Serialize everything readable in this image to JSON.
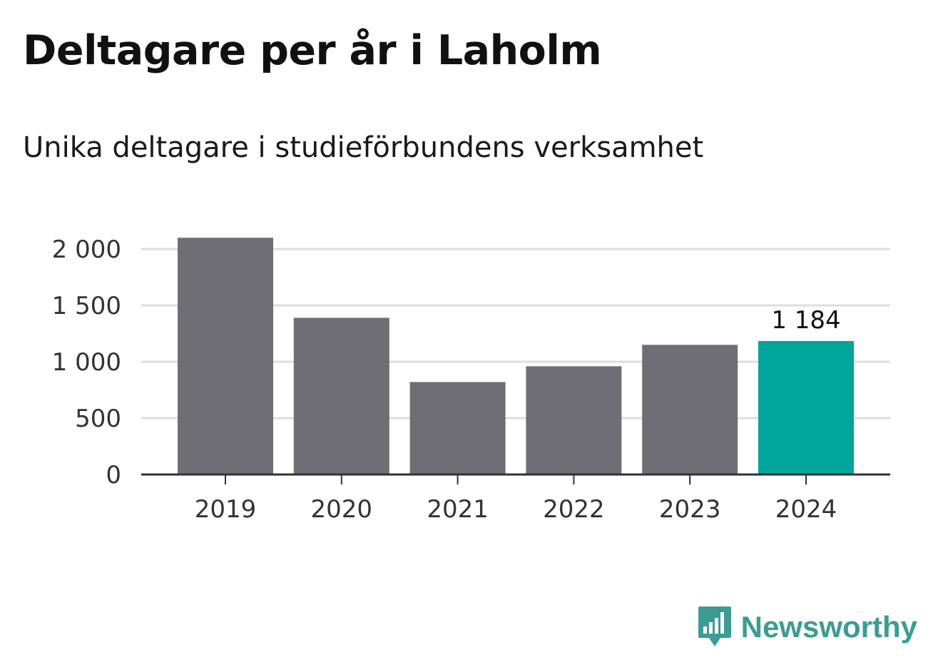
{
  "title": "Deltagare per år i Laholm",
  "subtitle": "Unika deltagare i studieförbundens verksamhet",
  "brand": {
    "name": "Newsworthy",
    "icon": "newsworthy-logo-icon",
    "color": "#3b9c95"
  },
  "chart_data": {
    "type": "bar",
    "title": "Deltagare per år i Laholm",
    "subtitle": "Unika deltagare i studieförbundens verksamhet",
    "categories": [
      "2019",
      "2020",
      "2021",
      "2022",
      "2023",
      "2024"
    ],
    "values": [
      2100,
      1390,
      820,
      960,
      1150,
      1184
    ],
    "value_labels": [
      "",
      "",
      "",
      "",
      "",
      "1 184"
    ],
    "highlight_index": 5,
    "colors": {
      "bar": "#6f6e74",
      "highlight": "#00a59a",
      "grid": "#dddddd",
      "axis": "#333333"
    },
    "ylim": [
      0,
      2000
    ],
    "yticks": [
      0,
      500,
      1000,
      1500,
      2000
    ],
    "ytick_labels": [
      "0",
      "500",
      "1 000",
      "1 500",
      "2 000"
    ],
    "grid": true,
    "xlabel": "",
    "ylabel": ""
  }
}
